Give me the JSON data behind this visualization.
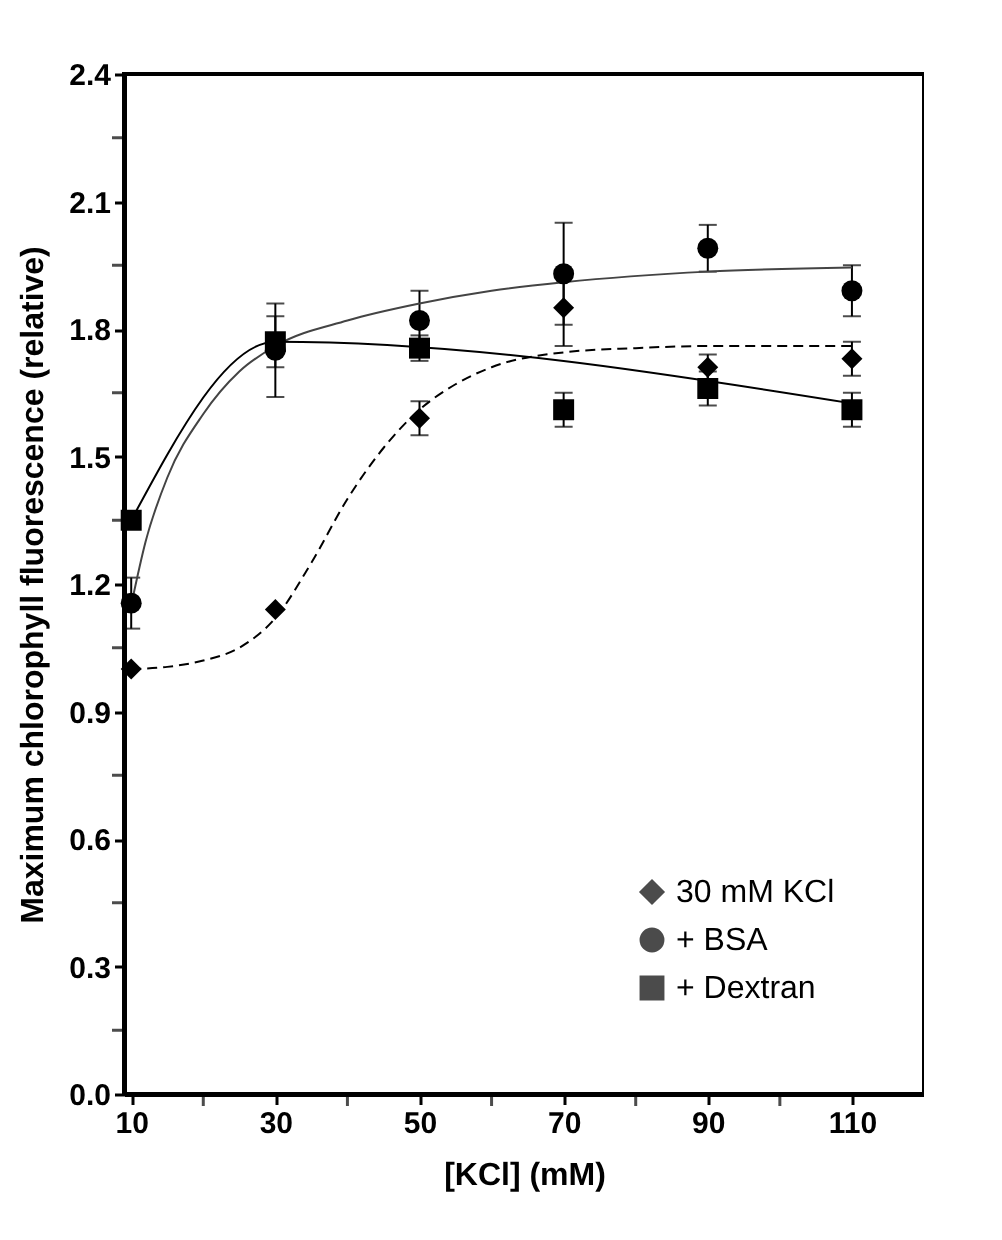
{
  "chart_data": {
    "type": "scatter",
    "xlabel": "[KCl] (mM)",
    "ylabel": "Maximum chlorophyll fluorescence (relative)",
    "x": [
      10,
      30,
      50,
      70,
      90,
      110
    ],
    "xlim": [
      9,
      120
    ],
    "xticks": [
      10,
      {
        "value": 20,
        "label": null
      },
      30,
      {
        "value": 40,
        "label": null
      },
      50,
      {
        "value": 60,
        "label": null
      },
      70,
      {
        "value": 80,
        "label": null
      },
      90,
      {
        "value": 100,
        "label": null
      },
      110
    ],
    "ylim": [
      0,
      2.4
    ],
    "yticks": [
      {
        "value": 0,
        "label": "0.0"
      },
      {
        "value": 0.15,
        "label": null
      },
      0.3,
      {
        "value": 0.45,
        "label": null
      },
      0.6,
      {
        "value": 0.75,
        "label": null
      },
      0.9,
      {
        "value": 1.05,
        "label": null
      },
      1.2,
      {
        "value": 1.35,
        "label": null
      },
      1.5,
      {
        "value": 1.65,
        "label": null
      },
      1.8,
      {
        "value": 1.95,
        "label": null
      },
      2.1,
      {
        "value": 2.25,
        "label": null
      },
      2.4
    ],
    "grid": false,
    "legend": "bottom right",
    "series": [
      {
        "name": " 30 mM KCl",
        "color": "#000000",
        "marker": "diamond",
        "values": [
          1.0,
          1.14,
          1.59,
          1.85,
          1.71,
          1.73
        ],
        "errors": [
          null,
          null,
          0.04,
          0.09,
          0.03,
          0.04
        ]
      },
      {
        "name": "+ BSA",
        "color": "#000000",
        "marker": "circle",
        "values": [
          1.155,
          1.75,
          1.82,
          1.93,
          1.99,
          1.89
        ],
        "errors": [
          0.06,
          0.11,
          0.07,
          0.12,
          0.055,
          0.06
        ]
      },
      {
        "name": "+ Dextran",
        "color": "#000000",
        "marker": "square",
        "values": [
          1.35,
          1.77,
          1.755,
          1.61,
          1.66,
          1.61
        ],
        "errors": [
          0.02,
          0.06,
          0.03,
          0.04,
          0.04,
          0.04
        ]
      },
      {
        "type": "line",
        "color": "#000000",
        "line_style": "dashed",
        "marker": "none",
        "x": [
          10,
          15,
          20,
          25,
          30,
          35,
          40,
          45,
          50,
          55,
          60,
          70,
          80,
          90,
          110
        ],
        "values": [
          1.0,
          1.005,
          1.02,
          1.05,
          1.12,
          1.25,
          1.4,
          1.52,
          1.61,
          1.67,
          1.71,
          1.745,
          1.755,
          1.76,
          1.76
        ]
      },
      {
        "type": "line",
        "color": "#444444",
        "line_style": "solid",
        "marker": "none",
        "x": [
          10,
          12,
          15,
          20,
          25,
          30,
          40,
          50,
          60,
          70,
          90,
          110
        ],
        "values": [
          1.15,
          1.3,
          1.45,
          1.6,
          1.7,
          1.76,
          1.82,
          1.86,
          1.89,
          1.91,
          1.935,
          1.945
        ]
      },
      {
        "type": "line",
        "color": "#000000",
        "line_style": "solid",
        "marker": "none",
        "x": [
          10,
          30,
          110
        ],
        "values": [
          1.35,
          1.77,
          1.625
        ]
      }
    ]
  }
}
